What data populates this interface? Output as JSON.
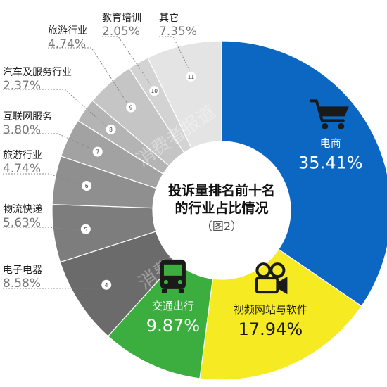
{
  "chart_data": {
    "type": "pie",
    "title": "投诉量排名前十名\n的行业占比情况\n（图2）",
    "watermark": "消费者报道",
    "slices": [
      {
        "label": "电商",
        "value": 35.41,
        "value_text": "35.41%",
        "color": "#0b67c2",
        "icon": "shopping-cart-icon"
      },
      {
        "label": "视频网站与软件",
        "value": 17.94,
        "value_text": "17.94%",
        "color": "#f6ea22",
        "icon": "movie-camera-icon"
      },
      {
        "label": "交通出行",
        "value": 9.87,
        "value_text": "9.87%",
        "color": "#3bae3f",
        "icon": "bus-icon"
      },
      {
        "label": "电子电器",
        "value": 8.58,
        "value_text": "8.58%",
        "color": "#6b6b6b",
        "index": "4"
      },
      {
        "label": "物流快递",
        "value": 5.63,
        "value_text": "5.63%",
        "color": "#7d7d7d",
        "index": "5"
      },
      {
        "label": "旅游行业",
        "value": 4.74,
        "value_text": "4.74%",
        "color": "#8f8f8f",
        "index": "6"
      },
      {
        "label": "互联网服务",
        "value": 3.8,
        "value_text": "3.80%",
        "color": "#a2a2a2",
        "index": "7"
      },
      {
        "label": "汽车及服务行业",
        "value": 2.37,
        "value_text": "2.37%",
        "color": "#b4b4b4",
        "index": "8"
      },
      {
        "label": "旅游行业",
        "value": 4.74,
        "value_text": "4.74%",
        "color": "#c5c5c5",
        "index": "9"
      },
      {
        "label": "教育培训",
        "value": 2.05,
        "value_text": "2.05%",
        "color": "#d3d3d3",
        "index": "10"
      },
      {
        "label": "其它",
        "value": 7.35,
        "value_text": "7.35%",
        "color": "#e4e4e4",
        "index": "11"
      }
    ]
  }
}
